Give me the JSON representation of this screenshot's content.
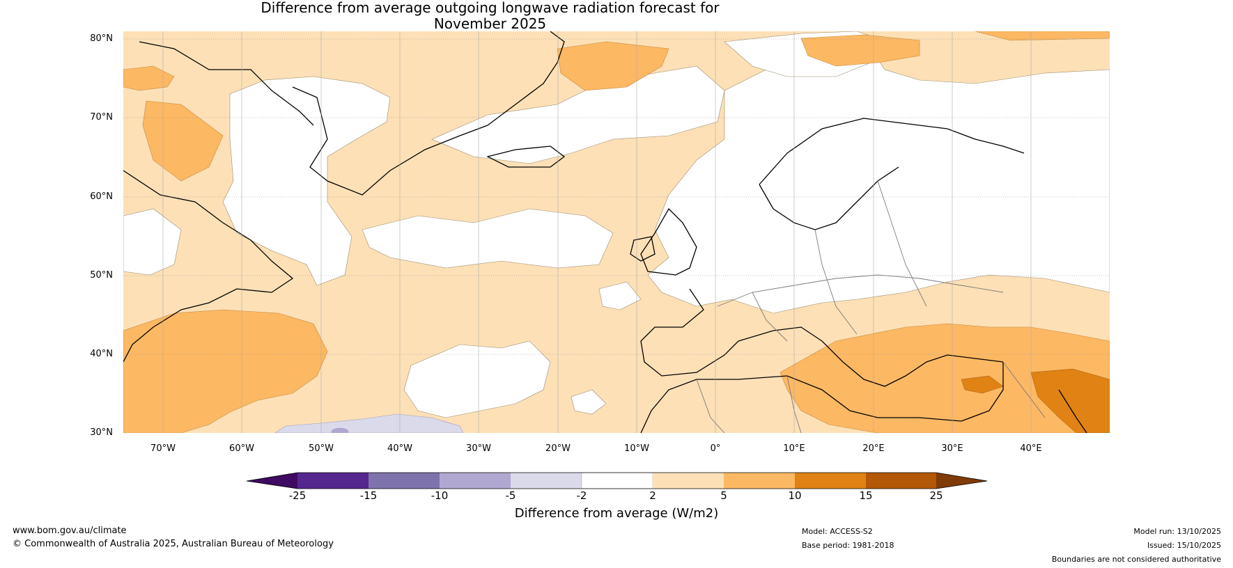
{
  "title": {
    "line1": "Difference from average outgoing longwave radiation forecast for",
    "line2": "November 2025"
  },
  "map": {
    "lat_labels": [
      "80°N",
      "70°N",
      "60°N",
      "50°N",
      "40°N",
      "30°N"
    ],
    "lon_labels": [
      "70°W",
      "60°W",
      "50°W",
      "40°W",
      "30°W",
      "20°W",
      "10°W",
      "0°",
      "10°E",
      "20°E",
      "30°E",
      "40°E"
    ],
    "extent": {
      "lon_min": -75,
      "lon_max": 50,
      "lat_min": 30,
      "lat_max": 80
    }
  },
  "colorbar": {
    "ticks": [
      "-25",
      "-15",
      "-10",
      "-5",
      "-2",
      "2",
      "5",
      "10",
      "15",
      "25"
    ],
    "colors": [
      "#3f0a62",
      "#54278f",
      "#7f73ad",
      "#b0a8d0",
      "#dadaeb",
      "#ffffff",
      "#fde0b6",
      "#fdb863",
      "#e08214",
      "#b35806",
      "#7f3b08"
    ],
    "title": "Difference from average (W/m2)"
  },
  "footer": {
    "url": "www.bom.gov.au/climate",
    "copyright": "© Commonwealth of Australia 2025, Australian Bureau of Meteorology",
    "model": "Model: ACCESS-S2",
    "base_period": "Base period: 1981-2018",
    "model_run": "Model run: 13/10/2025",
    "issued": "Issued: 15/10/2025",
    "disclaimer": "Boundaries are not considered authoritative"
  }
}
